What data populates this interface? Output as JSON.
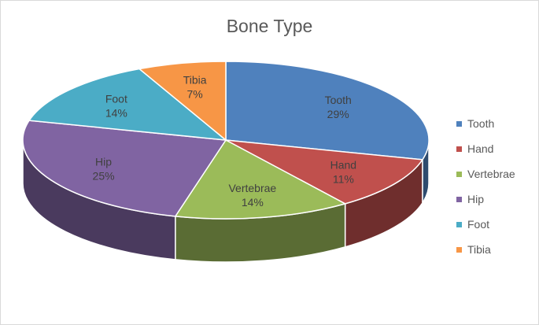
{
  "chart_data": {
    "type": "pie",
    "title": "Bone Type",
    "categories": [
      "Tooth",
      "Hand",
      "Vertebrae",
      "Hip",
      "Foot",
      "Tibia"
    ],
    "values": [
      29,
      11,
      14,
      25,
      14,
      7
    ],
    "percent_labels": [
      "29%",
      "11%",
      "14%",
      "25%",
      "14%",
      "7%"
    ],
    "colors": [
      "#4f81bd",
      "#c0504d",
      "#9bbb59",
      "#8064a2",
      "#4bacc6",
      "#f79646"
    ],
    "three_d": true,
    "legend_position": "right"
  }
}
